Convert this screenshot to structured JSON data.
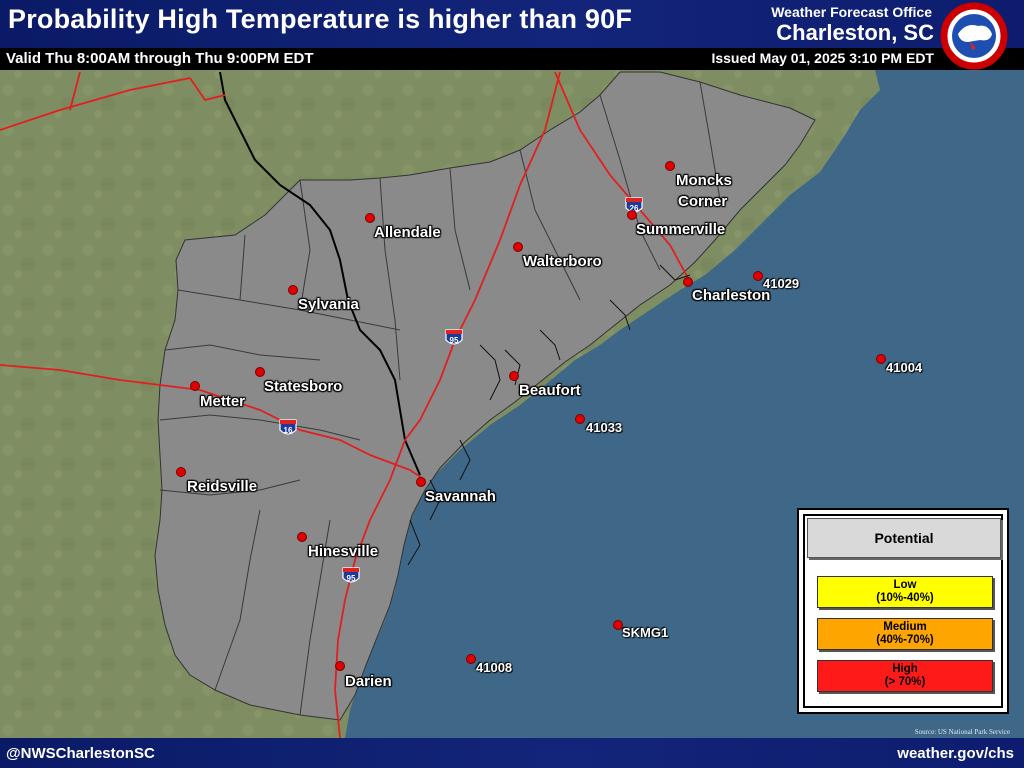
{
  "header": {
    "title": "Probability High Temperature is higher than 90F",
    "valid": "Valid Thu 8:00AM through Thu 9:00PM EDT",
    "office": "Weather Forecast Office",
    "location": "Charleston, SC",
    "issued": "Issued May 01, 2025 3:10 PM EDT",
    "logo_icon": "nws-logo-icon"
  },
  "footer": {
    "handle": "@NWSCharlestonSC",
    "site": "weather.gov/chs",
    "source": "Source: US National Park Service"
  },
  "legend": {
    "title": "Potential",
    "items": [
      {
        "label": "Low",
        "range": "(10%-40%)",
        "color": "#ffff00"
      },
      {
        "label": "Medium",
        "range": "(40%-70%)",
        "color": "#ffa500"
      },
      {
        "label": "High",
        "range": "(> 70%)",
        "color": "#ff1a1a"
      }
    ]
  },
  "map": {
    "land_color": "#7f8e62",
    "forecast_area_color": "#8a8a8a",
    "water_color": "#3f6888",
    "road_color": "#e02020",
    "cities": [
      {
        "name": "Moncks"
      },
      {
        "name": "Corner"
      },
      {
        "name": "Summerville"
      },
      {
        "name": "Allendale"
      },
      {
        "name": "Walterboro"
      },
      {
        "name": "Charleston"
      },
      {
        "name": "Sylvania"
      },
      {
        "name": "Beaufort"
      },
      {
        "name": "Statesboro"
      },
      {
        "name": "Metter"
      },
      {
        "name": "Reidsville"
      },
      {
        "name": "Savannah"
      },
      {
        "name": "Hinesville"
      },
      {
        "name": "Darien"
      }
    ],
    "buoys": [
      "41029",
      "41004",
      "41033",
      "SKMG1",
      "41008"
    ],
    "shields": [
      "26",
      "95",
      "16",
      "95"
    ]
  }
}
